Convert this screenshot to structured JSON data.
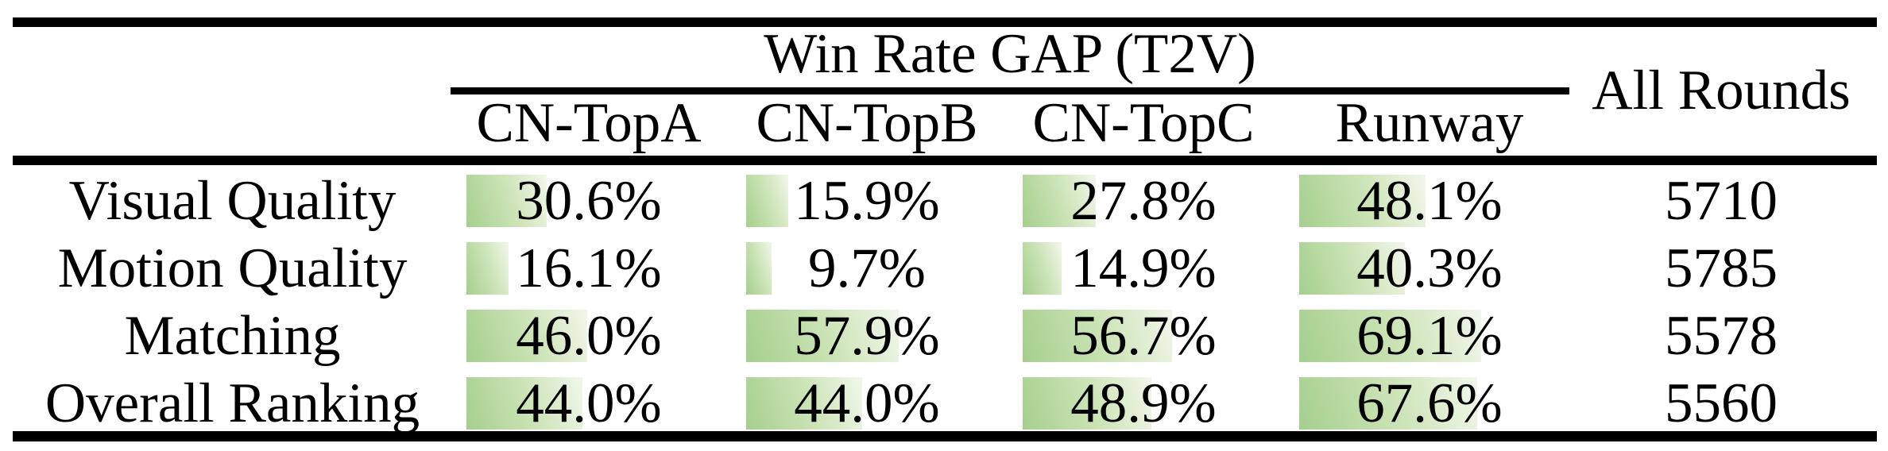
{
  "table": {
    "group_header": "Win Rate GAP (T2V)",
    "columns": [
      "CN-TopA",
      "CN-TopB",
      "CN-TopC",
      "Runway"
    ],
    "all_rounds_header": "All Rounds",
    "rows": [
      {
        "label": "Visual Quality",
        "values": [
          "30.6%",
          "15.9%",
          "27.8%",
          "48.1%"
        ],
        "all_rounds": "5710"
      },
      {
        "label": "Motion Quality",
        "values": [
          "16.1%",
          "9.7%",
          "14.9%",
          "40.3%"
        ],
        "all_rounds": "5785"
      },
      {
        "label": "Matching",
        "values": [
          "46.0%",
          "57.9%",
          "56.7%",
          "69.1%"
        ],
        "all_rounds": "5578"
      },
      {
        "label": "Overall Ranking",
        "values": [
          "44.0%",
          "44.0%",
          "48.9%",
          "67.6%"
        ],
        "all_rounds": "5560"
      }
    ]
  },
  "colors": {
    "background": "#ffffff",
    "text": "#000000",
    "rule": "#000000",
    "bar_gradient_start": "#a5cf8d",
    "bar_gradient_mid": "#cde4b8",
    "bar_gradient_end": "#f2f7ec"
  },
  "chart_data": {
    "type": "bar",
    "title": "Win Rate GAP (T2V)",
    "categories": [
      "Visual Quality",
      "Motion Quality",
      "Matching",
      "Overall Ranking"
    ],
    "series": [
      {
        "name": "CN-TopA",
        "values": [
          30.6,
          16.1,
          46.0,
          44.0
        ]
      },
      {
        "name": "CN-TopB",
        "values": [
          15.9,
          9.7,
          57.9,
          44.0
        ]
      },
      {
        "name": "CN-TopC",
        "values": [
          27.8,
          14.9,
          56.7,
          48.9
        ]
      },
      {
        "name": "Runway",
        "values": [
          48.1,
          40.3,
          69.1,
          67.6
        ]
      }
    ],
    "all_rounds_column": {
      "name": "All Rounds",
      "values": [
        5710,
        5785,
        5578,
        5560
      ]
    },
    "unit": "%",
    "bar_range": [
      0,
      100
    ],
    "legend_position": "none",
    "grid": false
  }
}
